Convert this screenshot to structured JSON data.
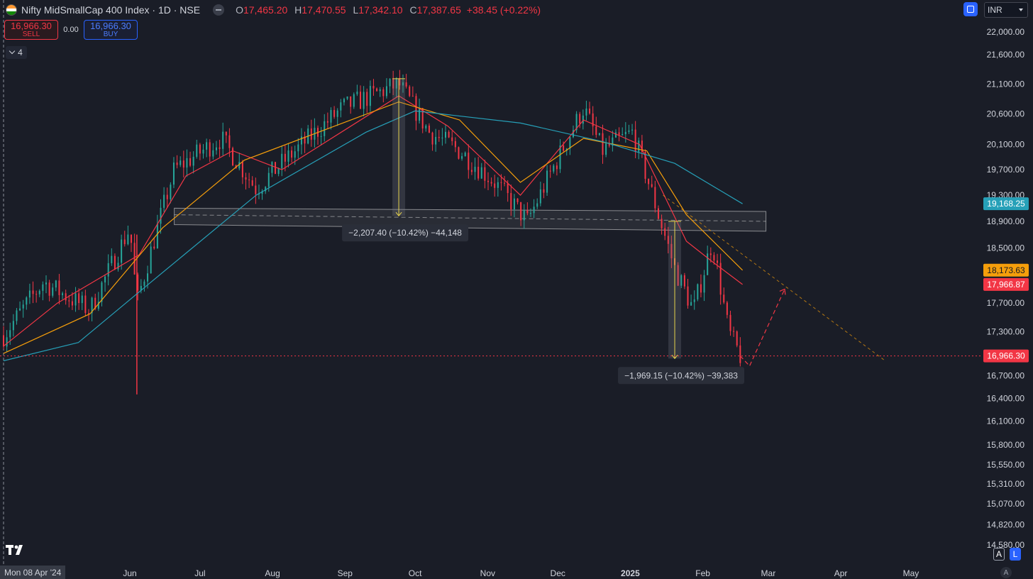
{
  "header": {
    "title": "Nifty MidSmallCap 400 Index · 1D · NSE",
    "ohlc": [
      {
        "label": "O",
        "value": "17,465.20"
      },
      {
        "label": "H",
        "value": "17,470.55"
      },
      {
        "label": "L",
        "value": "17,342.10"
      },
      {
        "label": "C",
        "value": "17,387.65"
      }
    ],
    "change": "+38.45 (+0.22%)",
    "currency": "INR",
    "flag_colors": [
      "#ff9933",
      "#ffffff",
      "#138808"
    ]
  },
  "trading": {
    "sell_price": "16,966.30",
    "sell_label": "SELL",
    "spread": "0.00",
    "buy_price": "16,966.30",
    "buy_label": "BUY"
  },
  "indicators_count": "4",
  "footer": {
    "date_label": "Mon 08 Apr '24",
    "auto_label": "A",
    "log_label": "L",
    "bottom_a": "A"
  },
  "colors": {
    "background": "#1a1d27",
    "up": "#26a69a",
    "down": "#f23645",
    "ema_fast": "#f23645",
    "ema_mid": "#f59e0b",
    "ema_slow": "#26a0b8",
    "range_box": "#e0e0e0",
    "projection": "#f23645",
    "trend": "#f59e0b"
  },
  "chart_data": {
    "type": "candlestick",
    "symbol": "Nifty MidSmallCap 400 Index",
    "timeframe": "1D",
    "y_axis": {
      "ticks": [
        "22,000.00",
        "21,600.00",
        "21,100.00",
        "20,600.00",
        "20,100.00",
        "19,700.00",
        "19,300.00",
        "18,900.00",
        "18,500.00",
        "17,700.00",
        "17,300.00",
        "16,700.00",
        "16,400.00",
        "16,100.00",
        "15,800.00",
        "15,550.00",
        "15,310.00",
        "15,070.00",
        "14,820.00",
        "14,580.00"
      ],
      "scale": "log"
    },
    "x_axis": {
      "ticks": [
        {
          "label": "Jun",
          "date": "2024-06-01"
        },
        {
          "label": "Jul",
          "date": "2024-07-01"
        },
        {
          "label": "Aug",
          "date": "2024-08-01"
        },
        {
          "label": "Sep",
          "date": "2024-09-01"
        },
        {
          "label": "Oct",
          "date": "2024-10-01"
        },
        {
          "label": "Nov",
          "date": "2024-11-01"
        },
        {
          "label": "Dec",
          "date": "2024-12-01"
        },
        {
          "label": "2025",
          "date": "2025-01-01",
          "bold": true
        },
        {
          "label": "Feb",
          "date": "2025-02-01"
        },
        {
          "label": "Mar",
          "date": "2025-03-01"
        },
        {
          "label": "Apr",
          "date": "2025-04-01"
        },
        {
          "label": "May",
          "date": "2025-05-01"
        }
      ]
    },
    "price_key_points": [
      {
        "date": "2024-04-08",
        "close": 17250
      },
      {
        "date": "2024-04-25",
        "close": 18000
      },
      {
        "date": "2024-05-15",
        "close": 17600
      },
      {
        "date": "2024-06-01",
        "close": 18800
      },
      {
        "date": "2024-06-04",
        "close": 17700
      },
      {
        "date": "2024-06-20",
        "close": 19700
      },
      {
        "date": "2024-07-10",
        "close": 20200
      },
      {
        "date": "2024-07-25",
        "close": 19400
      },
      {
        "date": "2024-08-05",
        "close": 19800
      },
      {
        "date": "2024-08-31",
        "close": 20700
      },
      {
        "date": "2024-09-24",
        "close": 21100
      },
      {
        "date": "2024-10-07",
        "close": 20300
      },
      {
        "date": "2024-10-20",
        "close": 20000
      },
      {
        "date": "2024-11-04",
        "close": 19500
      },
      {
        "date": "2024-11-18",
        "close": 18900
      },
      {
        "date": "2024-12-12",
        "close": 20700
      },
      {
        "date": "2024-12-20",
        "close": 20000
      },
      {
        "date": "2025-01-02",
        "close": 20300
      },
      {
        "date": "2025-01-13",
        "close": 19000
      },
      {
        "date": "2025-01-20",
        "close": 18200
      },
      {
        "date": "2025-01-28",
        "close": 17600
      },
      {
        "date": "2025-02-05",
        "close": 18600
      },
      {
        "date": "2025-02-12",
        "close": 17300
      },
      {
        "date": "2025-02-17",
        "close": 16966
      }
    ],
    "moving_averages": [
      {
        "color": "ema_fast",
        "points": [
          {
            "date": "2024-04-08",
            "value": 17100
          },
          {
            "date": "2024-05-01",
            "value": 17700
          },
          {
            "date": "2024-06-05",
            "value": 18400
          },
          {
            "date": "2024-06-25",
            "value": 19600
          },
          {
            "date": "2024-07-15",
            "value": 20000
          },
          {
            "date": "2024-08-05",
            "value": 19700
          },
          {
            "date": "2024-09-24",
            "value": 20900
          },
          {
            "date": "2024-10-15",
            "value": 20400
          },
          {
            "date": "2024-11-15",
            "value": 19300
          },
          {
            "date": "2024-12-12",
            "value": 20500
          },
          {
            "date": "2025-01-05",
            "value": 20100
          },
          {
            "date": "2025-01-25",
            "value": 18600
          },
          {
            "date": "2025-02-05",
            "value": 18300
          },
          {
            "date": "2025-02-18",
            "value": 17967
          }
        ]
      },
      {
        "color": "ema_mid",
        "points": [
          {
            "date": "2024-04-08",
            "value": 17000
          },
          {
            "date": "2024-05-15",
            "value": 17550
          },
          {
            "date": "2024-06-15",
            "value": 18800
          },
          {
            "date": "2024-07-20",
            "value": 19850
          },
          {
            "date": "2024-09-24",
            "value": 20800
          },
          {
            "date": "2024-10-20",
            "value": 20500
          },
          {
            "date": "2024-11-15",
            "value": 19500
          },
          {
            "date": "2024-12-12",
            "value": 20200
          },
          {
            "date": "2025-01-08",
            "value": 20000
          },
          {
            "date": "2025-01-25",
            "value": 19000
          },
          {
            "date": "2025-02-18",
            "value": 18174
          }
        ]
      },
      {
        "color": "ema_slow",
        "points": [
          {
            "date": "2024-04-08",
            "value": 16900
          },
          {
            "date": "2024-05-10",
            "value": 17150
          },
          {
            "date": "2024-06-10",
            "value": 18000
          },
          {
            "date": "2024-07-25",
            "value": 19300
          },
          {
            "date": "2024-09-10",
            "value": 20300
          },
          {
            "date": "2024-10-01",
            "value": 20650
          },
          {
            "date": "2024-11-15",
            "value": 20450
          },
          {
            "date": "2024-12-20",
            "value": 20150
          },
          {
            "date": "2025-01-20",
            "value": 19800
          },
          {
            "date": "2025-02-18",
            "value": 19168
          }
        ]
      }
    ],
    "price_labels": [
      {
        "value": "19,168.25",
        "color": "ema_slow"
      },
      {
        "value": "18,173.63",
        "color": "ema_mid"
      },
      {
        "value": "17,966.87",
        "color": "ema_fast"
      },
      {
        "value": "16,966.30",
        "color": "down"
      }
    ],
    "current_price": 16966.3,
    "drawings": {
      "range_box": {
        "start": "2024-06-20",
        "end": "2025-02-28",
        "upper": [
          19100,
          19050
        ],
        "lower": [
          18850,
          18750
        ],
        "mid": [
          19000,
          18900
        ]
      },
      "measures": [
        {
          "date": "2024-09-24",
          "from": 21190,
          "to": 18983,
          "label": "−2,207.40 (−10.42%) −44,148"
        },
        {
          "date": "2025-01-20",
          "from": 18900,
          "to": 16931,
          "label": "−1,969.15 (−10.42%) −39,383"
        }
      ],
      "trend_line": [
        {
          "date": "2025-01-15",
          "value": 19300
        },
        {
          "date": "2025-04-20",
          "value": 16900
        }
      ],
      "projection": [
        {
          "date": "2025-02-17",
          "value": 16966
        },
        {
          "date": "2025-02-21",
          "value": 16830
        },
        {
          "date": "2025-03-08",
          "value": 17900
        }
      ]
    }
  }
}
